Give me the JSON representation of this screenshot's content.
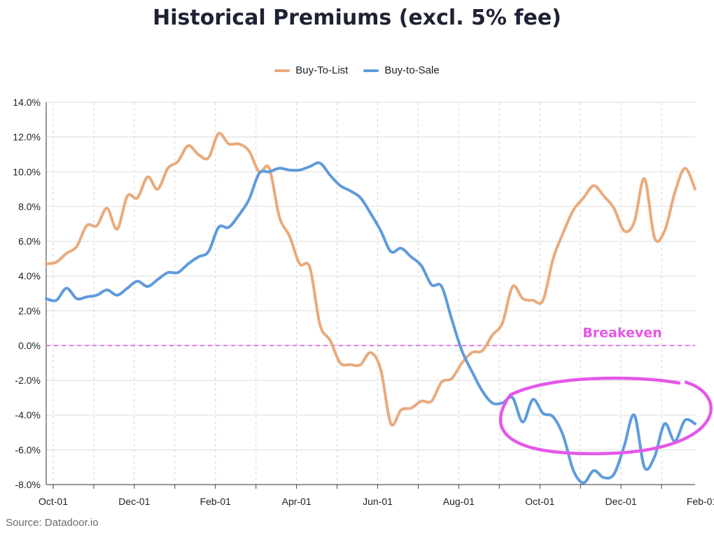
{
  "chart_data": {
    "type": "line",
    "title": "Historical Premiums (excl. 5% fee)",
    "source": "Source: Datadoor.io",
    "xlabel": "",
    "ylabel": "",
    "ylim": [
      -8,
      14
    ],
    "y_ticks": [
      "14.0%",
      "12.0%",
      "10.0%",
      "8.0%",
      "6.0%",
      "4.0%",
      "2.0%",
      "0.0%",
      "-2.0%",
      "-4.0%",
      "-6.0%",
      "-8.0%"
    ],
    "y_tick_values": [
      14,
      12,
      10,
      8,
      6,
      4,
      2,
      0,
      -2,
      -4,
      -6,
      -8
    ],
    "x_tick_labels": [
      "Oct-01",
      "Dec-01",
      "Feb-01",
      "Apr-01",
      "Jun-01",
      "Aug-01",
      "Oct-01",
      "Dec-01",
      "Feb-01"
    ],
    "grid": true,
    "legend_position": "top-center",
    "colors": {
      "buy_to_list": "#E9AA7C",
      "buy_to_sale": "#5E9BDB",
      "breakeven": "#E557E8",
      "highlight": "#E557E8"
    },
    "breakeven": {
      "value": 0,
      "label": "Breakeven"
    },
    "highlight": "ellipse around Buy-to-Sale values from early October to early February",
    "series": [
      {
        "name": "Buy-To-List",
        "values": [
          4.7,
          4.8,
          5.3,
          5.7,
          6.9,
          6.9,
          7.9,
          6.7,
          8.6,
          8.5,
          9.7,
          9.0,
          10.2,
          10.6,
          11.5,
          11.0,
          10.8,
          12.2,
          11.6,
          11.6,
          11.2,
          10.0,
          10.2,
          7.4,
          6.3,
          4.7,
          4.5,
          1.2,
          0.3,
          -1.0,
          -1.1,
          -1.1,
          -0.4,
          -1.4,
          -4.5,
          -3.7,
          -3.6,
          -3.2,
          -3.2,
          -2.1,
          -1.9,
          -1.0,
          -0.4,
          -0.3,
          0.6,
          1.3,
          3.4,
          2.7,
          2.6,
          2.6,
          5.0,
          6.5,
          7.8,
          8.5,
          9.2,
          8.6,
          7.9,
          6.6,
          7.1,
          9.6,
          6.2,
          6.6,
          8.8,
          10.2,
          9.0
        ]
      },
      {
        "name": "Buy-to-Sale",
        "values": [
          2.7,
          2.6,
          3.3,
          2.7,
          2.8,
          2.9,
          3.2,
          2.9,
          3.3,
          3.7,
          3.4,
          3.8,
          4.2,
          4.2,
          4.7,
          5.1,
          5.4,
          6.8,
          6.8,
          7.5,
          8.4,
          9.9,
          10.0,
          10.2,
          10.1,
          10.1,
          10.3,
          10.5,
          9.8,
          9.2,
          8.9,
          8.5,
          7.6,
          6.6,
          5.4,
          5.6,
          5.1,
          4.6,
          3.5,
          3.4,
          1.5,
          -0.3,
          -1.5,
          -2.6,
          -3.3,
          -3.3,
          -3.0,
          -4.4,
          -3.1,
          -3.9,
          -4.1,
          -5.2,
          -7.2,
          -7.9,
          -7.2,
          -7.6,
          -7.4,
          -5.8,
          -4.0,
          -7.0,
          -6.4,
          -4.5,
          -5.5,
          -4.3,
          -4.5
        ]
      }
    ]
  }
}
